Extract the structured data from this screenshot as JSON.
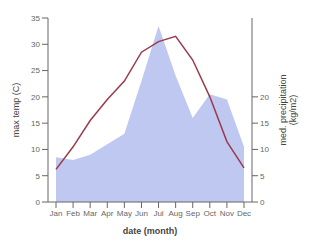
{
  "chart_data": {
    "type": "line",
    "categories": [
      "Jan",
      "Feb",
      "Mar",
      "Apr",
      "May",
      "Jun",
      "Jul",
      "Aug",
      "Sep",
      "Oct",
      "Nov",
      "Dec"
    ],
    "series": [
      {
        "type": "area",
        "color": "#bfc8f0",
        "values": [
          8.5,
          8.0,
          9.0,
          11.0,
          13.0,
          23.0,
          33.5,
          24.0,
          16.0,
          20.5,
          19.5,
          10.5
        ],
        "axis": "y2"
      },
      {
        "type": "line",
        "color": "#9b3a4a",
        "values": [
          6.2,
          10.5,
          15.5,
          19.5,
          23.0,
          28.5,
          30.5,
          31.5,
          27.0,
          20.0,
          11.5,
          6.5
        ]
      }
    ],
    "xlabel": "date (month)",
    "ylabel": "max temp (C)",
    "y2label": "med. precipitation\n(kg/m2)",
    "ylim": [
      0,
      35
    ],
    "yticks": [
      0,
      5,
      10,
      15,
      20,
      25,
      30,
      35
    ],
    "y2lim": [
      0,
      35
    ],
    "y2ticks": [
      0,
      5,
      10,
      15,
      20
    ]
  }
}
